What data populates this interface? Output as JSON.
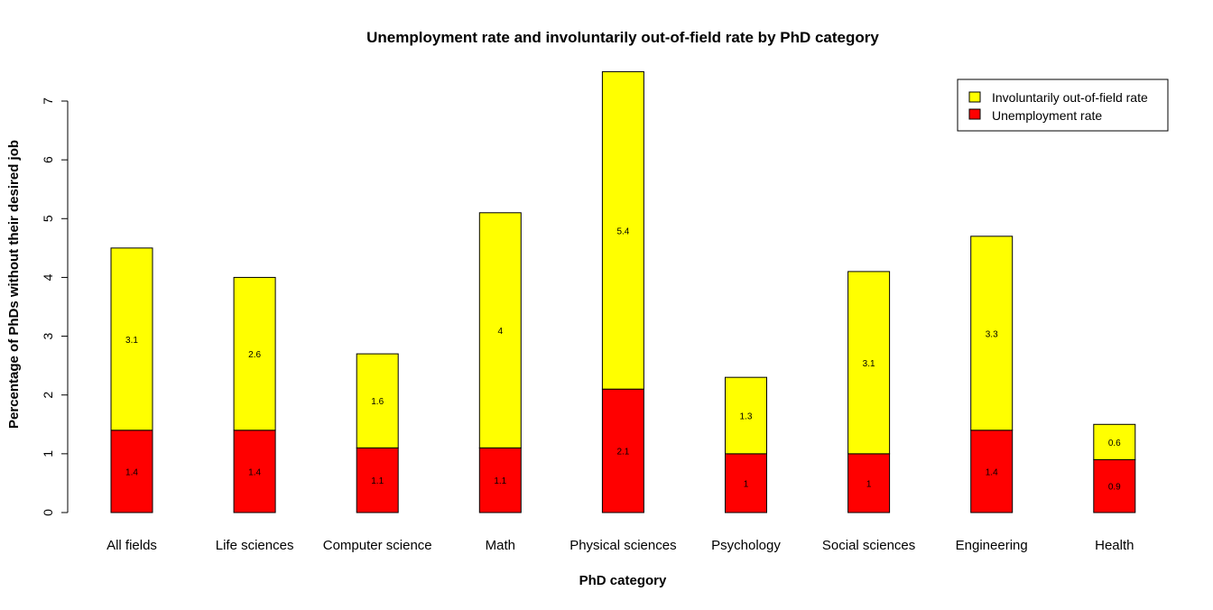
{
  "chart_data": {
    "type": "bar",
    "stacked": true,
    "title": "Unemployment rate and involuntarily out-of-field rate by PhD category",
    "xlabel": "PhD category",
    "ylabel": "Percentage of PhDs without their desired job",
    "ylim": [
      0,
      7.5
    ],
    "yticks": [
      "0",
      "1",
      "2",
      "3",
      "4",
      "5",
      "6",
      "7"
    ],
    "grid": false,
    "legend_position": "top-right",
    "categories": [
      "All fields",
      "Life sciences",
      "Computer science",
      "Math",
      "Physical sciences",
      "Psychology",
      "Social sciences",
      "Engineering",
      "Health"
    ],
    "series": [
      {
        "name": "Unemployment rate",
        "color": "#ff0000",
        "values": [
          1.4,
          1.4,
          1.1,
          1.1,
          2.1,
          1,
          1,
          1.4,
          0.9
        ]
      },
      {
        "name": "Involuntarily out-of-field rate",
        "color": "#ffff00",
        "values": [
          3.1,
          2.6,
          1.6,
          4,
          5.4,
          1.3,
          3.1,
          3.3,
          0.6
        ]
      }
    ],
    "legend": [
      "Involuntarily out-of-field rate",
      "Unemployment rate"
    ]
  }
}
